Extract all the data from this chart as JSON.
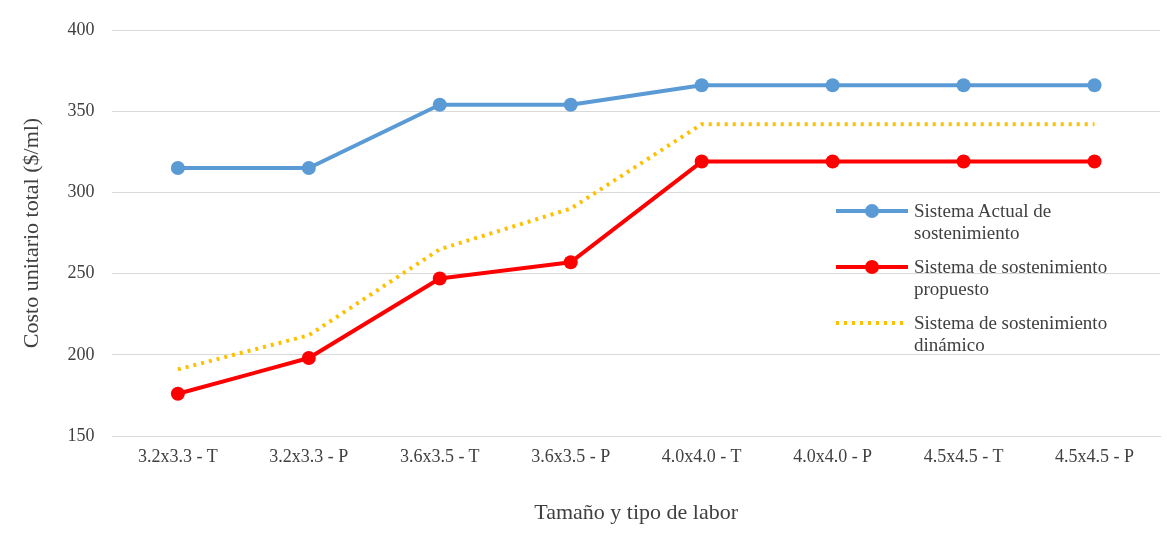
{
  "chart_data": {
    "type": "line",
    "xlabel": "Tamaño y tipo de labor",
    "ylabel": "Costo unitario total ($/ml)",
    "categories": [
      "3.2x3.3 - T",
      "3.2x3.3 - P",
      "3.6x3.5 - T",
      "3.6x3.5 - P",
      "4.0x4.0 - T",
      "4.0x4.0 - P",
      "4.5x4.5 - T",
      "4.5x4.5 - P"
    ],
    "series": [
      {
        "name": "Sistema Actual de sostenimiento",
        "color": "#5b9bd5",
        "marker": "circle",
        "line_style": "solid",
        "values": [
          315,
          315,
          354,
          354,
          366,
          366,
          366,
          366
        ]
      },
      {
        "name": "Sistema de sostenimiento propuesto",
        "color": "#ff0000",
        "marker": "circle",
        "line_style": "solid",
        "values": [
          176,
          198,
          247,
          257,
          319,
          319,
          319,
          319
        ]
      },
      {
        "name": "Sistema de sostenimiento dinámico",
        "color": "#ffc000",
        "marker": "none",
        "line_style": "dotted",
        "values": [
          191,
          212,
          265,
          290,
          342,
          342,
          342,
          342
        ]
      }
    ],
    "ylim": [
      150,
      400
    ],
    "yticks": [
      150,
      200,
      250,
      300,
      350,
      400
    ],
    "grid": "y",
    "legend": "right"
  }
}
